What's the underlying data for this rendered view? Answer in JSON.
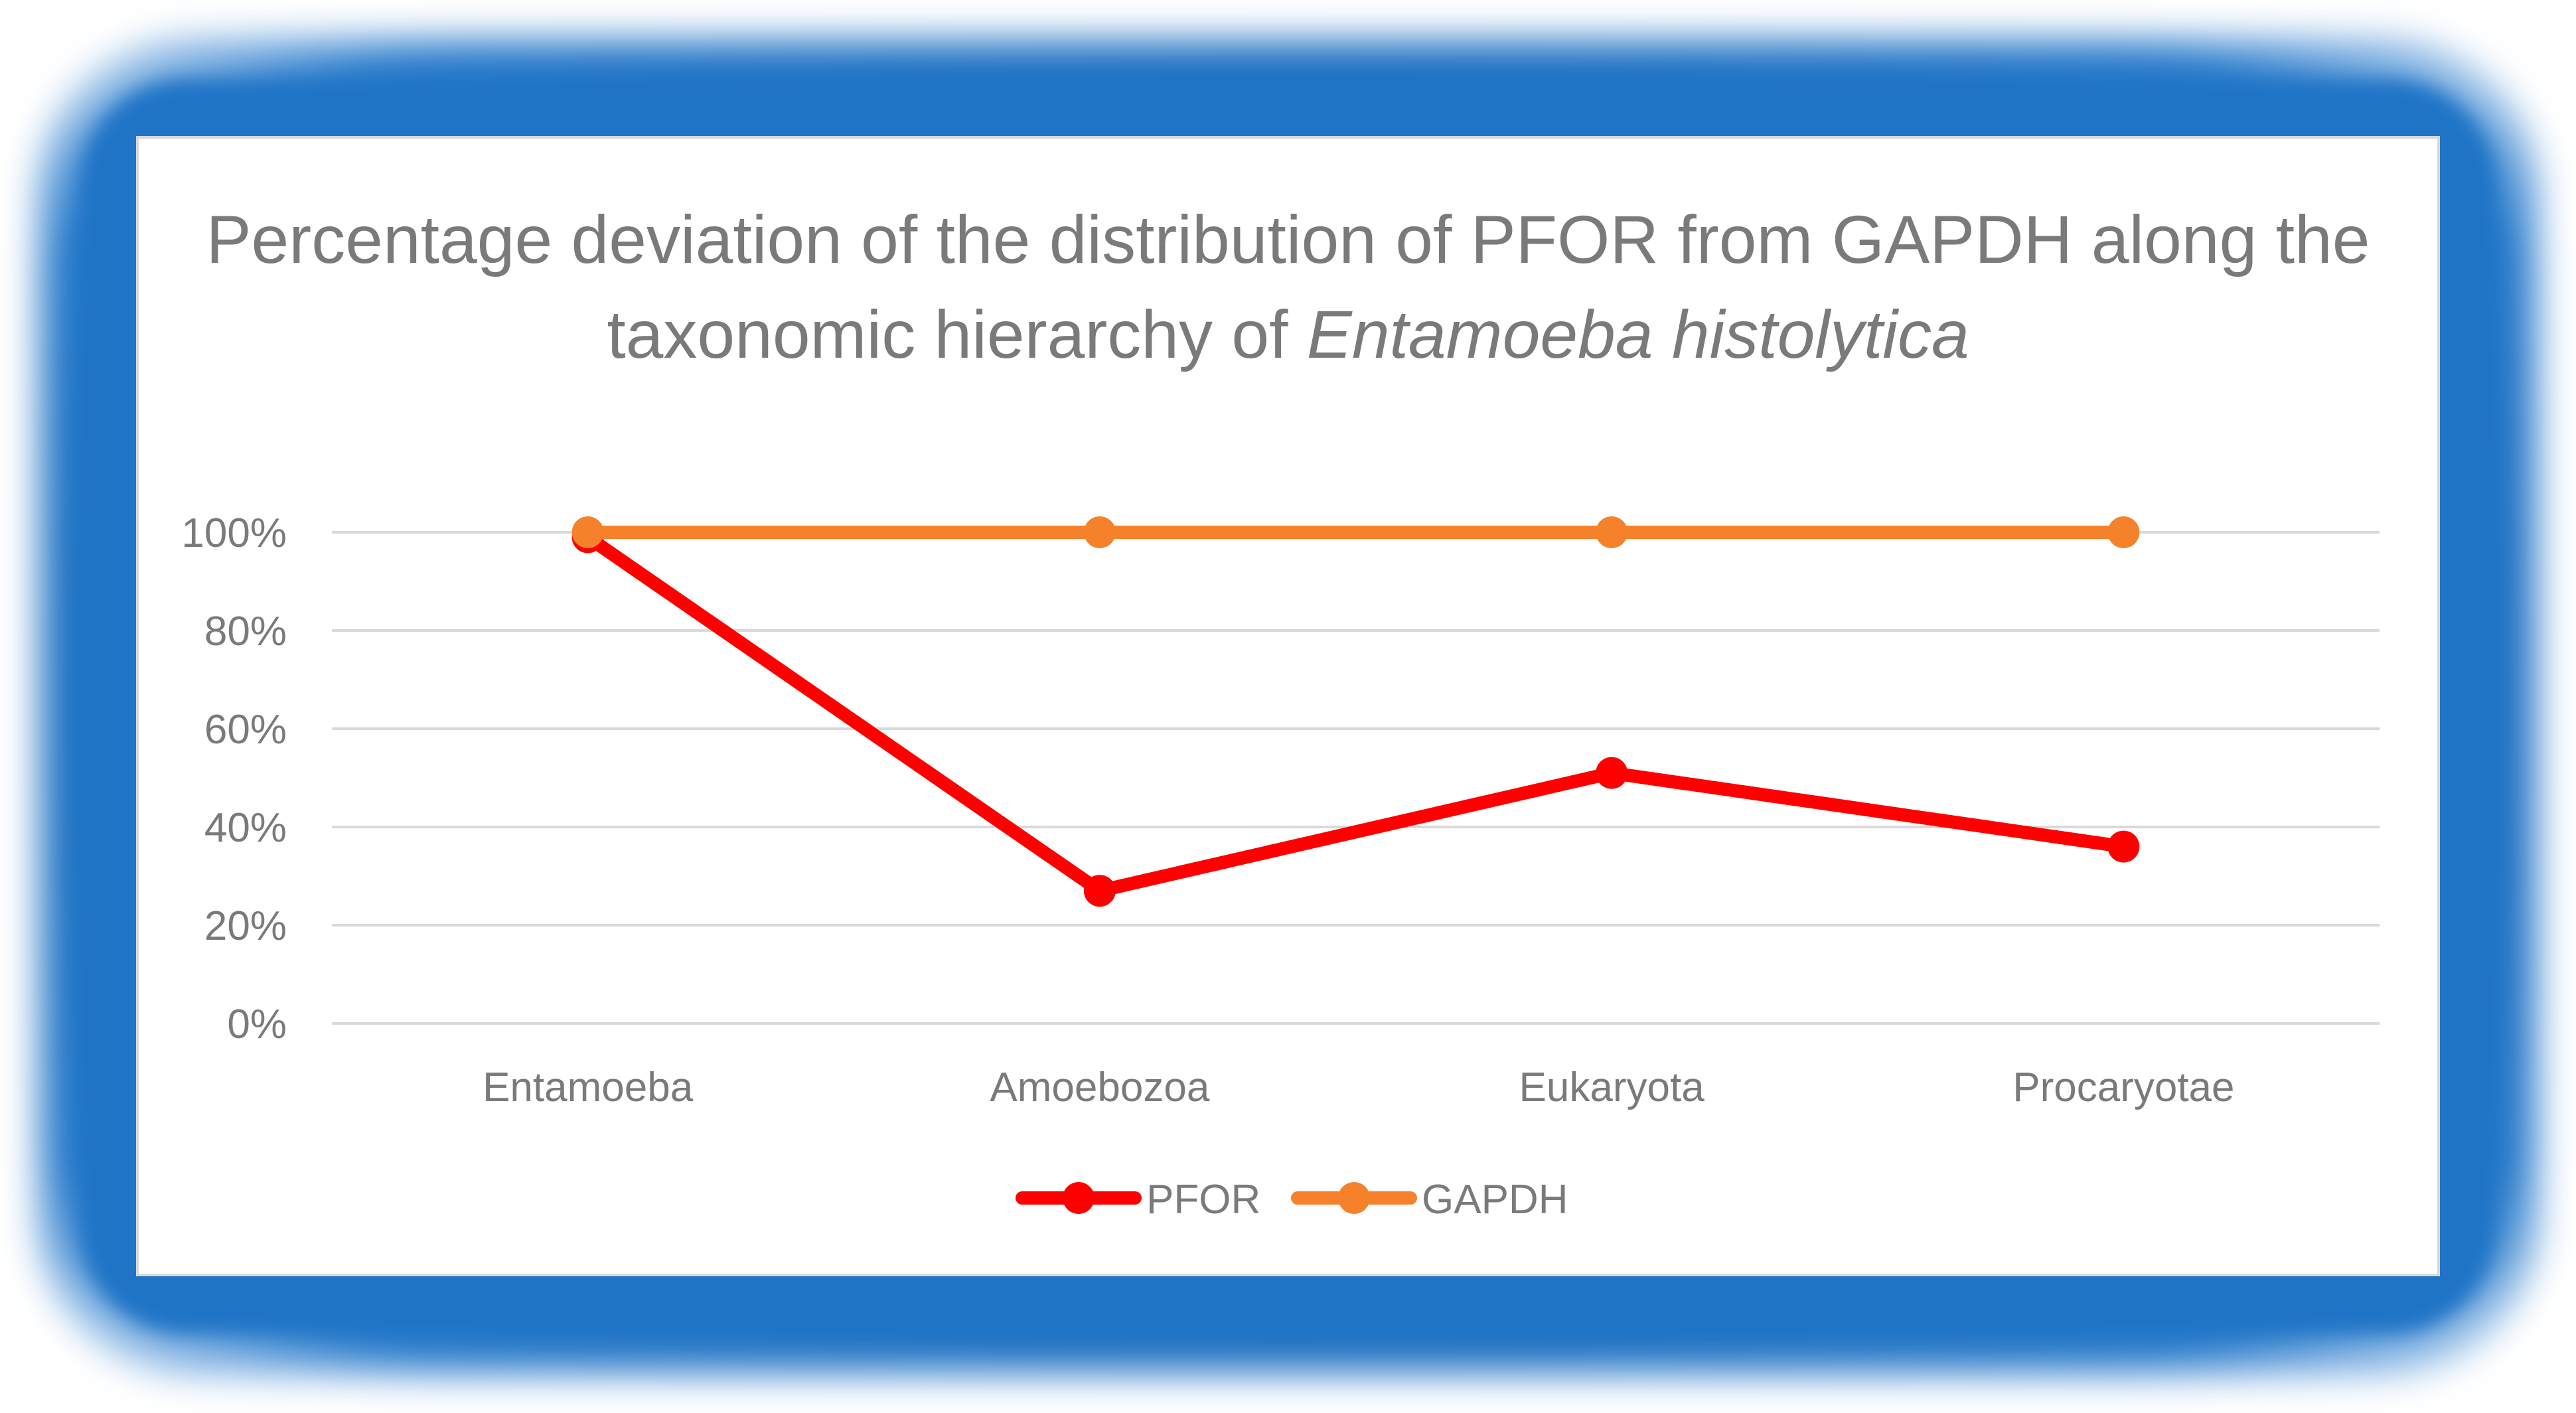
{
  "chart_data": {
    "type": "line",
    "title_parts": {
      "main": "Percentage deviation of the distribution of PFOR from GAPDH along the taxonomic hierarchy of",
      "italic": "Entamoeba histolytica"
    },
    "categories": [
      "Entamoeba",
      "Amoebozoa",
      "Eukaryota",
      "Procaryotae"
    ],
    "series": [
      {
        "name": "PFOR",
        "values": [
          0.99,
          0.27,
          0.51,
          0.36
        ],
        "color": "#ff0000"
      },
      {
        "name": "GAPDH",
        "values": [
          1.0,
          1.0,
          1.0,
          1.0
        ],
        "color": "#f5822a"
      }
    ],
    "y_ticks": [
      "0%",
      "20%",
      "40%",
      "60%",
      "80%",
      "100%"
    ],
    "ylim": [
      0,
      1
    ],
    "grid": true,
    "legend_position": "bottom",
    "colors": {
      "frame": "#1f74c6",
      "gridline": "#d9d9d9",
      "text": "#7a7a7a"
    }
  }
}
